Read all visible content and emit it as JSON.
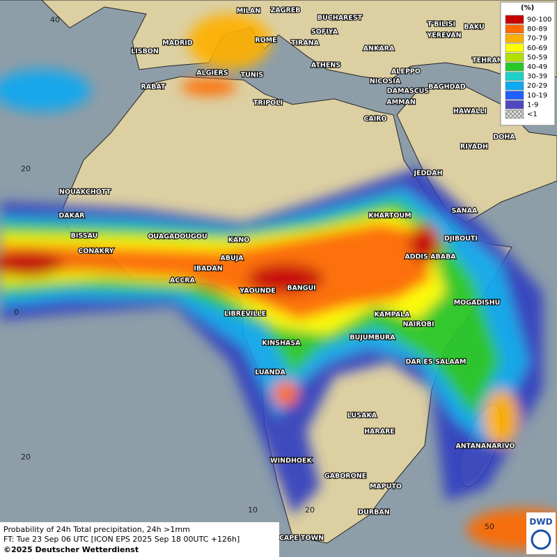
{
  "cities": [
    "MILAN",
    "ZAGREB",
    "BUCHAREST",
    "SOFIYA",
    "ROME",
    "TIRANA",
    "ANKARA",
    "T'BILISI",
    "YEREVAN",
    "BAKU",
    "TEHRAN",
    "MADRID",
    "LISBON",
    "ATHENS",
    "ALGIERS",
    "TUNIS",
    "RABAT",
    "ALEPPO",
    "NICOSIA",
    "BAGHDAD",
    "DAMASCUS",
    "AMMAN",
    "TRIPOLI",
    "CAIRO",
    "HAWALLI",
    "DOHA",
    "RIYADH",
    "JEDDAH",
    "NOUAKCHOTT",
    "DAKAR",
    "KHARTOUM",
    "SANAA",
    "BISSAU",
    "OUAGADOUGOU",
    "DJIBOUTI",
    "KANO",
    "CONAKRY",
    "ABUJA",
    "ADDIS ABABA",
    "IBADAN",
    "ACCRA",
    "YAOUNDE",
    "BANGUI",
    "MOGADISHU",
    "LIBREVILLE",
    "KAMPALA",
    "NAIROBI",
    "BUJUMBURA",
    "KINSHASA",
    "DAR ES SALAAM",
    "LUANDA",
    "LUSAKA",
    "HARARE",
    "ANTANANARIVO",
    "WINDHOEK",
    "GABORONE",
    "MAPUTO",
    "DURBAN",
    "CAPE TOWN"
  ],
  "lat_labels": [
    40,
    20,
    0,
    20
  ],
  "lon_labels": [
    10,
    20,
    50
  ],
  "legend": {
    "title": "(%)",
    "items": [
      {
        "label": "90-100",
        "color": "#c80000"
      },
      {
        "label": "80-89",
        "color": "#ff6a00"
      },
      {
        "label": "70-79",
        "color": "#ffb000"
      },
      {
        "label": "60-69",
        "color": "#ffff00"
      },
      {
        "label": "50-59",
        "color": "#b4e000"
      },
      {
        "label": "40-49",
        "color": "#28c828"
      },
      {
        "label": "30-39",
        "color": "#20d0c8"
      },
      {
        "label": "20-29",
        "color": "#10a8f0"
      },
      {
        "label": "10-19",
        "color": "#2060ff"
      },
      {
        "label": "1-9",
        "color": "#5048c0"
      },
      {
        "label": "<1",
        "color": "#b0b0b0"
      }
    ]
  },
  "footer": {
    "line1": "Probability of 24h Total precipitation, 24h >1mm",
    "line2": "FT: Tue 23 Sep 06 UTC [ICON EPS 2025 Sep 18 00UTC +126h]",
    "line3": "©2025 Deutscher Wetterdienst"
  },
  "logo": "DWD"
}
